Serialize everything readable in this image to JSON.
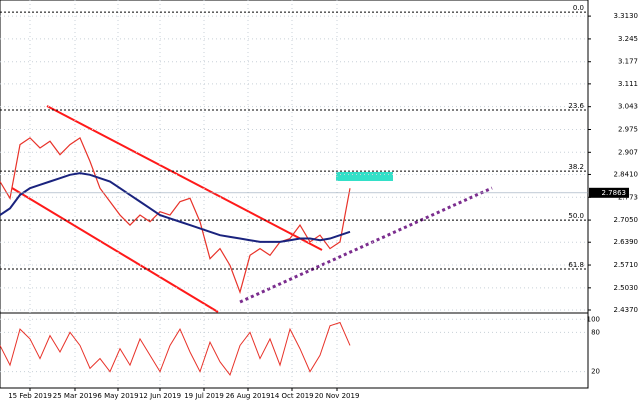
{
  "chart_data": {
    "type": "line",
    "x": [
      0,
      1,
      2,
      3,
      4,
      5,
      6,
      7,
      8,
      9,
      10,
      11,
      12,
      13,
      14,
      15,
      16,
      17,
      18,
      19,
      20,
      21,
      22,
      23,
      24,
      25,
      26,
      27,
      28,
      29,
      30,
      31,
      32,
      33,
      34,
      35
    ],
    "xlim": [
      0,
      58.8
    ],
    "xticks": [
      {
        "value": 3,
        "label": "15 Feb 2019"
      },
      {
        "value": 7.5,
        "label": "25 Mar 2019"
      },
      {
        "value": 11.8,
        "label": "6 May 2019"
      },
      {
        "value": 16,
        "label": "12 Jun 2019"
      },
      {
        "value": 20.4,
        "label": "19 Jul 2019"
      },
      {
        "value": 24.8,
        "label": "26 Aug 2019"
      },
      {
        "value": 29.2,
        "label": "14 Oct 2019"
      },
      {
        "value": 33.7,
        "label": "20 Nov 2019"
      }
    ],
    "ylim": [
      2.431,
      3.361
    ],
    "yticks": [
      {
        "value": 3.313,
        "label": "3.3130"
      },
      3.245,
      3.177,
      3.111,
      3.043,
      2.975,
      2.907,
      {
        "value": 2.841,
        "label": "2.8410"
      },
      2.773,
      {
        "value": 2.705,
        "label": "2.7050"
      },
      {
        "value": 2.639,
        "label": "2.6390"
      },
      {
        "value": 2.571,
        "label": "2.5710"
      },
      {
        "value": 2.503,
        "label": "2.5030"
      },
      {
        "value": 2.437,
        "label": "2.4370"
      }
    ],
    "grid": true,
    "series": [
      {
        "color": "#e8332a",
        "values": [
          2.82,
          2.77,
          2.93,
          2.95,
          2.92,
          2.94,
          2.9,
          2.93,
          2.95,
          2.88,
          2.8,
          2.76,
          2.72,
          2.69,
          2.72,
          2.7,
          2.73,
          2.72,
          2.76,
          2.77,
          2.7,
          2.59,
          2.62,
          2.57,
          2.49,
          2.6,
          2.62,
          2.6,
          2.64,
          2.65,
          2.69,
          2.64,
          2.66,
          2.62,
          2.64,
          2.8
        ]
      },
      {
        "color": "#1a237e",
        "values": [
          2.72,
          2.74,
          2.78,
          2.8,
          2.81,
          2.82,
          2.83,
          2.84,
          2.845,
          2.84,
          2.83,
          2.82,
          2.8,
          2.78,
          2.76,
          2.74,
          2.72,
          2.71,
          2.7,
          2.69,
          2.68,
          2.67,
          2.66,
          2.655,
          2.65,
          2.645,
          2.64,
          2.64,
          2.64,
          2.645,
          2.65,
          2.65,
          2.645,
          2.65,
          2.66,
          2.67
        ]
      }
    ],
    "current_price": 2.7863,
    "fib_levels": [
      {
        "label": "0.0",
        "price": 3.325
      },
      {
        "label": "23.6",
        "price": 3.033
      },
      {
        "label": "38.2",
        "price": 2.851
      },
      {
        "label": "50.0",
        "price": 2.705
      },
      {
        "label": "61.8",
        "price": 2.559
      }
    ],
    "oscillator": {
      "ylim": [
        -5,
        105
      ],
      "yticks": [
        100,
        80,
        20
      ],
      "color": "#e8332a",
      "values": [
        60,
        30,
        85,
        70,
        40,
        75,
        50,
        80,
        60,
        25,
        40,
        20,
        55,
        30,
        70,
        45,
        20,
        60,
        85,
        50,
        20,
        65,
        35,
        15,
        60,
        80,
        40,
        70,
        30,
        85,
        55,
        20,
        45,
        90,
        95,
        60
      ]
    }
  }
}
